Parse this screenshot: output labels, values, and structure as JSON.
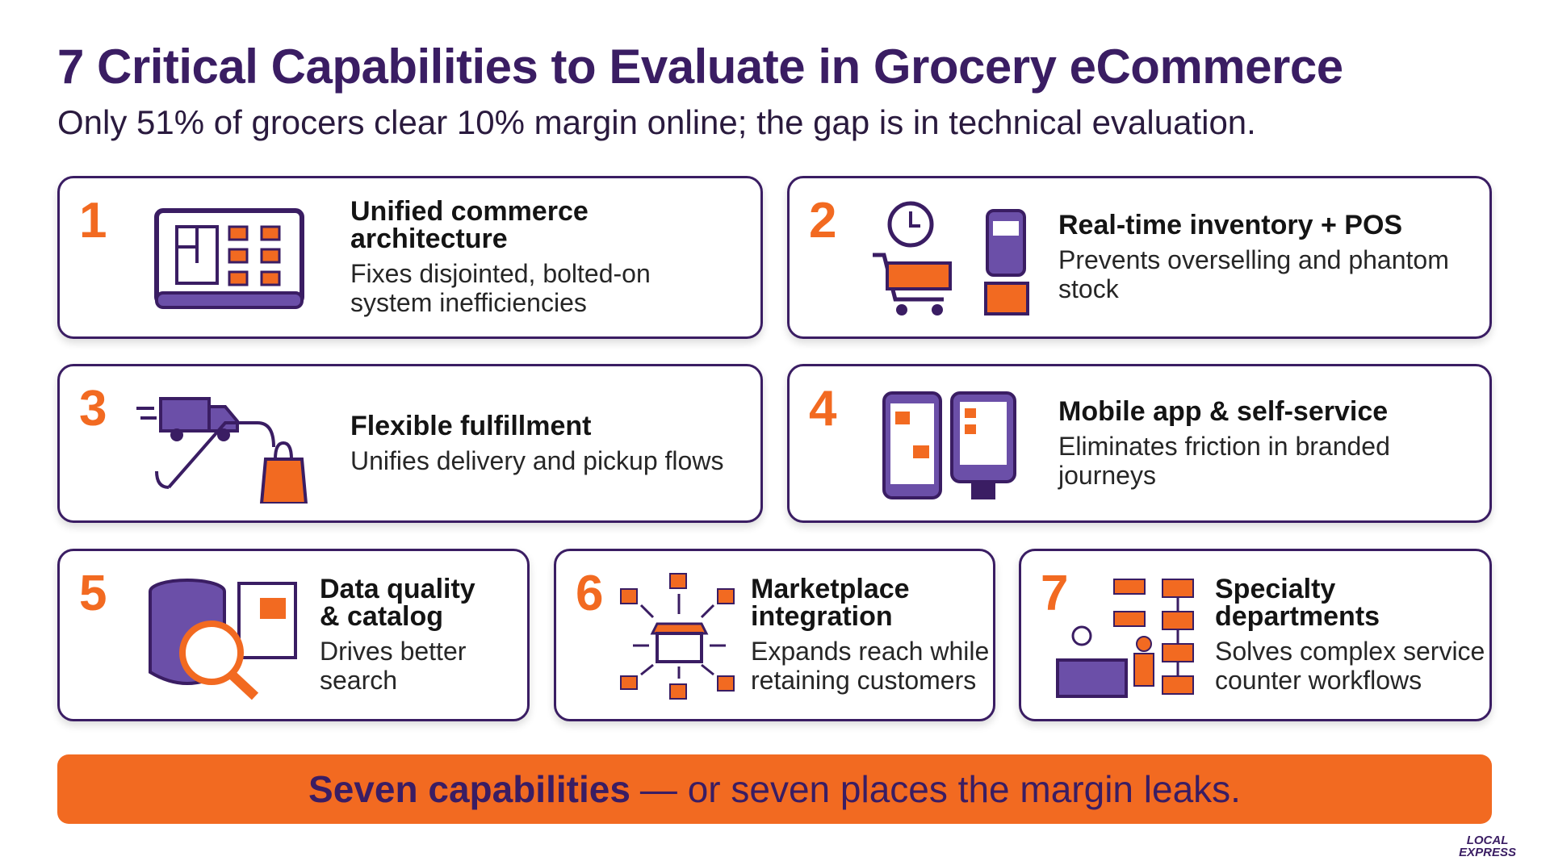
{
  "header": {
    "title": "7 Critical Capabilities to Evaluate in Grocery eCommerce",
    "subtitle": "Only 51% of grocers clear 10% margin online; the gap is in technical evaluation."
  },
  "cards": [
    {
      "number": "1",
      "title": "Unified commerce architecture",
      "description": "Fixes disjointed, bolted-on system inefficiencies"
    },
    {
      "number": "2",
      "title": "Real-time inventory + POS",
      "description": "Prevents overselling and phantom stock"
    },
    {
      "number": "3",
      "title": "Flexible fulfillment",
      "description": "Unifies delivery and pickup flows"
    },
    {
      "number": "4",
      "title": "Mobile app & self-service",
      "description": "Eliminates friction in branded journeys"
    },
    {
      "number": "5",
      "title": "Data quality & catalog",
      "description": "Drives better search"
    },
    {
      "number": "6",
      "title": "Marketplace integration",
      "description": "Expands reach while retaining customers"
    },
    {
      "number": "7",
      "title": "Specialty departments",
      "description": "Solves complex service counter workflows"
    }
  ],
  "banner": {
    "bold": "Seven capabilities",
    "rest": "— or seven places the margin leaks."
  },
  "logo": {
    "line1": "LOCAL",
    "line2": "EXPRESS"
  }
}
